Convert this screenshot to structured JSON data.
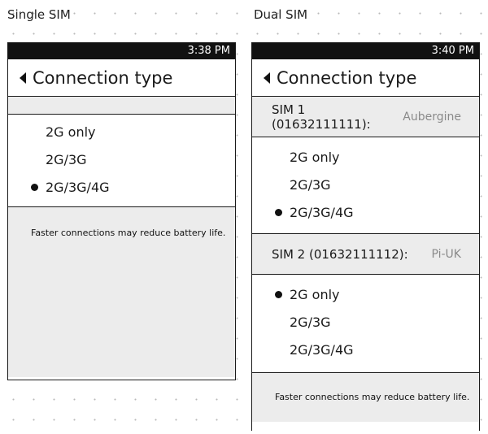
{
  "single": {
    "caption": "Single SIM",
    "time": "3:38 PM",
    "title": "Connection type",
    "options": [
      {
        "label": "2G only",
        "selected": false
      },
      {
        "label": "2G/3G",
        "selected": false
      },
      {
        "label": "2G/3G/4G",
        "selected": true
      }
    ],
    "footnote": "Faster connections may reduce battery life."
  },
  "dual": {
    "caption": "Dual SIM",
    "time": "3:40 PM",
    "title": "Connection type",
    "sim1": {
      "label": "SIM 1 (01632111111):",
      "operator": "Aubergine",
      "options": [
        {
          "label": "2G only",
          "selected": false
        },
        {
          "label": "2G/3G",
          "selected": false
        },
        {
          "label": "2G/3G/4G",
          "selected": true
        }
      ]
    },
    "sim2": {
      "label": "SIM 2 (01632111112):",
      "operator": "Pi-UK",
      "options": [
        {
          "label": "2G only",
          "selected": true
        },
        {
          "label": "2G/3G",
          "selected": false
        },
        {
          "label": "2G/3G/4G",
          "selected": false
        }
      ]
    },
    "footnote": "Faster connections may reduce battery life."
  }
}
